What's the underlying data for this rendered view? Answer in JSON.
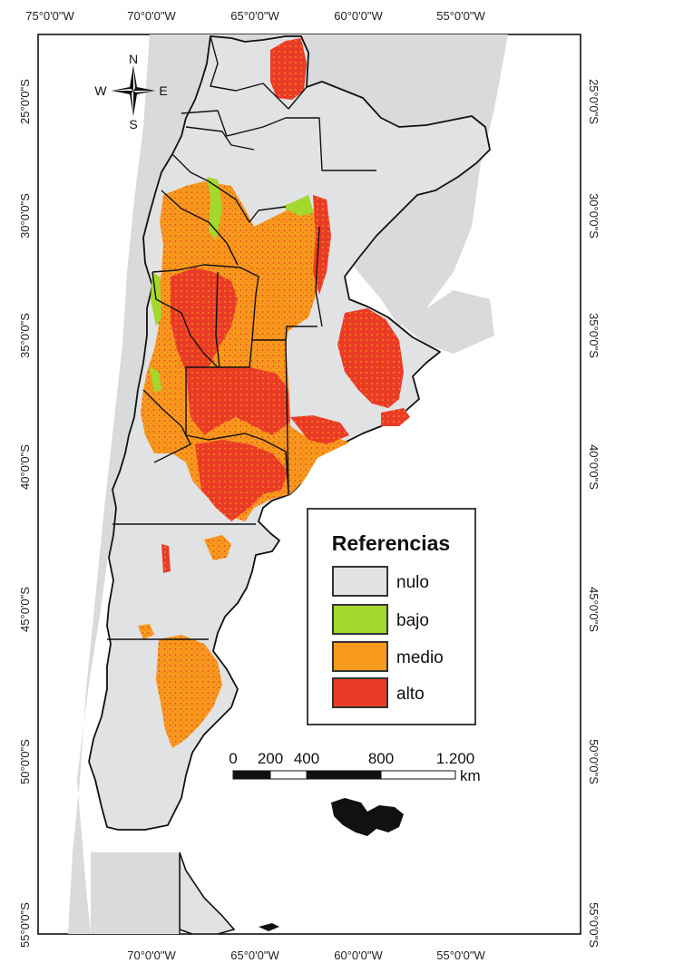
{
  "map": {
    "top_ticks": [
      "75°0'0\"W",
      "70°0'0\"W",
      "65°0'0\"W",
      "60°0'0\"W",
      "55°0'0\"W"
    ],
    "bottom_ticks": [
      "70°0'0\"W",
      "65°0'0\"W",
      "60°0'0\"W",
      "55°0'0\"W"
    ],
    "left_ticks": [
      "25°0'0\"S",
      "30°0'0\"S",
      "35°0'0\"S",
      "40°0'0\"S",
      "45°0'0\"S",
      "50°0'0\"S",
      "55°0'0\"S"
    ],
    "right_ticks": [
      "25°0'0\"S",
      "30°0'0\"S",
      "35°0'0\"S",
      "40°0'0\"S",
      "45°0'0\"S",
      "50°0'0\"S",
      "55°0'0\"S"
    ]
  },
  "compass": {
    "north": "N",
    "south": "S",
    "east": "E",
    "west": "W"
  },
  "legend": {
    "title": "Referencias",
    "items": [
      {
        "label": "nulo",
        "color": "#e1e2e4"
      },
      {
        "label": "bajo",
        "color": "#a3d82c"
      },
      {
        "label": "medio",
        "color": "#f79a1c"
      },
      {
        "label": "alto",
        "color": "#ea3b26"
      }
    ]
  },
  "scale_bar": {
    "labels": [
      "0",
      "200",
      "400",
      "800",
      "1.200"
    ],
    "unit": "km"
  },
  "colors": {
    "background_land": "#d9dadc",
    "argentina_fill": "#e1e2e4",
    "border": "#111111",
    "medio": "#f79a1c",
    "alto": "#ea3b26",
    "bajo": "#a3d82c"
  }
}
